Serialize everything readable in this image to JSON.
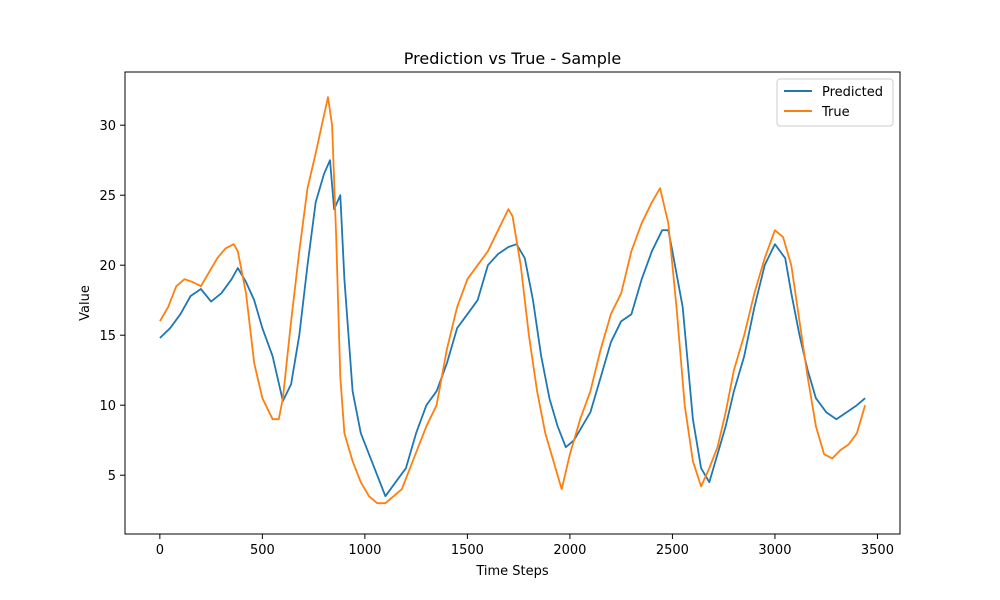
{
  "chart_data": {
    "type": "line",
    "title": "Prediction vs True - Sample",
    "xlabel": "Time Steps",
    "ylabel": "Value",
    "xlim": [
      -170,
      3610
    ],
    "ylim": [
      0.8,
      33.8
    ],
    "xticks": [
      0,
      500,
      1000,
      1500,
      2000,
      2500,
      3000,
      3500
    ],
    "yticks": [
      5,
      10,
      15,
      20,
      25,
      30
    ],
    "grid": false,
    "legend_position": "top-right",
    "series": [
      {
        "name": "Predicted",
        "color": "#1f77b4",
        "x": [
          0,
          50,
          100,
          150,
          200,
          250,
          300,
          350,
          380,
          420,
          460,
          500,
          550,
          600,
          640,
          680,
          720,
          760,
          800,
          830,
          850,
          880,
          900,
          940,
          980,
          1020,
          1060,
          1100,
          1150,
          1200,
          1250,
          1300,
          1350,
          1400,
          1450,
          1500,
          1550,
          1600,
          1650,
          1700,
          1740,
          1780,
          1820,
          1860,
          1900,
          1940,
          1980,
          2020,
          2060,
          2100,
          2150,
          2200,
          2250,
          2300,
          2350,
          2400,
          2450,
          2480,
          2500,
          2550,
          2600,
          2640,
          2680,
          2720,
          2760,
          2800,
          2850,
          2900,
          2950,
          3000,
          3050,
          3080,
          3120,
          3160,
          3200,
          3250,
          3300,
          3350,
          3400,
          3440
        ],
        "y": [
          14.8,
          15.5,
          16.5,
          17.8,
          18.3,
          17.4,
          18.0,
          19.0,
          19.8,
          18.8,
          17.5,
          15.5,
          13.5,
          10.3,
          11.5,
          15.0,
          20.0,
          24.5,
          26.5,
          27.5,
          24.0,
          25.0,
          19.0,
          11.0,
          8.0,
          6.5,
          5.0,
          3.5,
          4.5,
          5.5,
          8.0,
          10.0,
          11.0,
          13.0,
          15.5,
          16.5,
          17.5,
          20.0,
          20.8,
          21.3,
          21.5,
          20.5,
          17.5,
          13.5,
          10.5,
          8.5,
          7.0,
          7.5,
          8.5,
          9.5,
          12.0,
          14.5,
          16.0,
          16.5,
          19.0,
          21.0,
          22.5,
          22.5,
          21.0,
          17.0,
          9.0,
          5.5,
          4.5,
          6.5,
          8.5,
          11.0,
          13.5,
          17.0,
          20.0,
          21.5,
          20.5,
          18.0,
          15.0,
          12.5,
          10.5,
          9.5,
          9.0,
          9.5,
          10.0,
          10.5
        ]
      },
      {
        "name": "True",
        "color": "#ff7f0e",
        "x": [
          0,
          40,
          80,
          120,
          160,
          200,
          240,
          280,
          320,
          360,
          380,
          420,
          460,
          500,
          550,
          580,
          600,
          640,
          680,
          720,
          760,
          790,
          820,
          840,
          860,
          880,
          900,
          940,
          980,
          1020,
          1060,
          1100,
          1140,
          1180,
          1220,
          1260,
          1300,
          1350,
          1400,
          1450,
          1500,
          1550,
          1600,
          1650,
          1700,
          1720,
          1760,
          1800,
          1840,
          1880,
          1920,
          1960,
          2000,
          2050,
          2100,
          2150,
          2200,
          2250,
          2300,
          2350,
          2400,
          2440,
          2480,
          2520,
          2560,
          2600,
          2640,
          2680,
          2720,
          2760,
          2800,
          2850,
          2900,
          2950,
          3000,
          3040,
          3080,
          3120,
          3160,
          3200,
          3240,
          3280,
          3320,
          3360,
          3400,
          3440
        ],
        "y": [
          16.0,
          17.0,
          18.5,
          19.0,
          18.8,
          18.5,
          19.5,
          20.5,
          21.2,
          21.5,
          21.0,
          18.0,
          13.0,
          10.5,
          9.0,
          9.0,
          10.5,
          16.0,
          21.0,
          25.5,
          28.0,
          30.0,
          32.0,
          30.0,
          22.0,
          12.0,
          8.0,
          6.0,
          4.5,
          3.5,
          3.0,
          3.0,
          3.5,
          4.0,
          5.5,
          7.0,
          8.5,
          10.0,
          14.0,
          17.0,
          19.0,
          20.0,
          21.0,
          22.5,
          24.0,
          23.5,
          20.0,
          15.0,
          11.0,
          8.0,
          6.0,
          4.0,
          6.5,
          9.0,
          11.0,
          14.0,
          16.5,
          18.0,
          21.0,
          23.0,
          24.5,
          25.5,
          23.0,
          17.0,
          10.0,
          6.0,
          4.2,
          5.5,
          7.0,
          9.5,
          12.5,
          15.0,
          18.0,
          20.5,
          22.5,
          22.0,
          20.0,
          16.0,
          12.0,
          8.5,
          6.5,
          6.2,
          6.8,
          7.2,
          8.0,
          10.0
        ]
      }
    ]
  }
}
